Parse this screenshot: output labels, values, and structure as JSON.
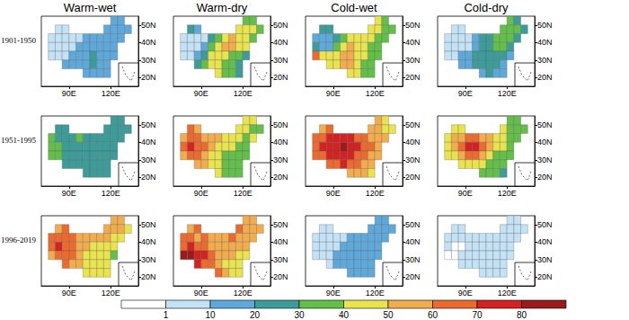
{
  "chart_data": {
    "type": "gridded_map_panels",
    "columns": [
      "Warm-wet",
      "Warm-dry",
      "Cold-wet",
      "Cold-dry"
    ],
    "rows": [
      "1901-1950",
      "1951-1995",
      "1996-2019"
    ],
    "xlim": [
      70,
      140
    ],
    "xticks": [
      {
        "value": 90,
        "label": "90E"
      },
      {
        "value": 120,
        "label": "120E"
      }
    ],
    "ylim": [
      15,
      55
    ],
    "yticks": [
      {
        "value": 20,
        "label": "20N"
      },
      {
        "value": 30,
        "label": "30N"
      },
      {
        "value": 40,
        "label": "40N"
      },
      {
        "value": 50,
        "label": "50N"
      }
    ],
    "grid": false,
    "cell_size": 5,
    "cell_lons": [
      122.5,
      127.5,
      82.5,
      87.5,
      117.5,
      122.5,
      127.5,
      132.5,
      77.5,
      82.5,
      87.5,
      92.5,
      97.5,
      102.5,
      107.5,
      112.5,
      117.5,
      122.5,
      127.5,
      77.5,
      82.5,
      87.5,
      92.5,
      97.5,
      102.5,
      107.5,
      112.5,
      117.5,
      122.5,
      77.5,
      82.5,
      87.5,
      92.5,
      97.5,
      102.5,
      107.5,
      112.5,
      117.5,
      122.5,
      87.5,
      92.5,
      97.5,
      102.5,
      107.5,
      112.5,
      117.5,
      102.5,
      107.5,
      112.5,
      117.5
    ],
    "cell_lats": [
      52.5,
      52.5,
      47.5,
      47.5,
      47.5,
      47.5,
      47.5,
      47.5,
      42.5,
      42.5,
      42.5,
      42.5,
      42.5,
      42.5,
      42.5,
      42.5,
      42.5,
      42.5,
      42.5,
      37.5,
      37.5,
      37.5,
      37.5,
      37.5,
      37.5,
      37.5,
      37.5,
      37.5,
      37.5,
      32.5,
      32.5,
      32.5,
      32.5,
      32.5,
      32.5,
      32.5,
      32.5,
      32.5,
      32.5,
      27.5,
      27.5,
      27.5,
      27.5,
      27.5,
      27.5,
      27.5,
      22.5,
      22.5,
      22.5,
      22.5
    ],
    "values": [
      [
        [
          12,
          10,
          5,
          8,
          10,
          12,
          15,
          12,
          5,
          5,
          3,
          5,
          8,
          10,
          12,
          12,
          15,
          15,
          12,
          3,
          2,
          3,
          5,
          10,
          15,
          15,
          15,
          15,
          12,
          2,
          3,
          8,
          12,
          15,
          18,
          20,
          18,
          15,
          15,
          10,
          12,
          15,
          18,
          20,
          18,
          15,
          15,
          18,
          15,
          12
        ],
        [
          35,
          30,
          20,
          15,
          40,
          45,
          40,
          35,
          5,
          5,
          3,
          8,
          20,
          35,
          45,
          50,
          45,
          40,
          35,
          3,
          2,
          5,
          10,
          30,
          45,
          55,
          50,
          45,
          40,
          5,
          5,
          15,
          25,
          40,
          45,
          40,
          35,
          30,
          25,
          20,
          30,
          40,
          45,
          35,
          30,
          25,
          40,
          35,
          30,
          25
        ],
        [
          40,
          35,
          20,
          25,
          45,
          40,
          35,
          30,
          15,
          10,
          15,
          20,
          35,
          40,
          45,
          45,
          40,
          35,
          35,
          20,
          10,
          15,
          30,
          45,
          50,
          45,
          40,
          35,
          30,
          65,
          45,
          40,
          45,
          50,
          55,
          45,
          40,
          35,
          30,
          40,
          45,
          50,
          50,
          40,
          35,
          35,
          45,
          40,
          35,
          30
        ],
        [
          30,
          25,
          5,
          8,
          30,
          35,
          30,
          25,
          3,
          3,
          2,
          5,
          10,
          20,
          25,
          30,
          35,
          30,
          25,
          2,
          2,
          3,
          8,
          15,
          20,
          25,
          30,
          30,
          25,
          5,
          5,
          10,
          15,
          20,
          20,
          20,
          20,
          20,
          15,
          10,
          15,
          20,
          20,
          20,
          20,
          15,
          15,
          20,
          15,
          12
        ]
      ],
      [
        [
          25,
          20,
          25,
          25,
          20,
          25,
          25,
          20,
          30,
          25,
          20,
          25,
          30,
          25,
          20,
          20,
          20,
          25,
          25,
          35,
          30,
          25,
          25,
          25,
          25,
          20,
          20,
          20,
          20,
          30,
          30,
          25,
          25,
          25,
          20,
          20,
          20,
          20,
          20,
          25,
          20,
          20,
          25,
          25,
          25,
          25,
          25,
          25,
          25,
          25
        ],
        [
          40,
          40,
          60,
          55,
          45,
          40,
          35,
          35,
          55,
          65,
          60,
          55,
          50,
          50,
          45,
          45,
          40,
          35,
          40,
          60,
          70,
          65,
          60,
          55,
          45,
          40,
          40,
          35,
          35,
          55,
          60,
          65,
          55,
          45,
          40,
          35,
          35,
          35,
          30,
          55,
          50,
          45,
          40,
          35,
          35,
          35,
          40,
          35,
          35,
          30
        ],
        [
          50,
          45,
          55,
          60,
          55,
          50,
          45,
          45,
          60,
          65,
          70,
          70,
          75,
          70,
          65,
          60,
          55,
          50,
          50,
          65,
          70,
          75,
          75,
          80,
          75,
          70,
          65,
          60,
          55,
          60,
          65,
          70,
          70,
          75,
          70,
          65,
          60,
          55,
          50,
          60,
          65,
          70,
          65,
          60,
          55,
          50,
          55,
          55,
          50,
          45
        ],
        [
          35,
          35,
          40,
          45,
          40,
          35,
          30,
          30,
          40,
          50,
          55,
          60,
          60,
          55,
          50,
          45,
          40,
          35,
          35,
          45,
          55,
          60,
          70,
          75,
          65,
          55,
          45,
          40,
          35,
          40,
          45,
          55,
          60,
          65,
          50,
          40,
          35,
          30,
          30,
          40,
          45,
          45,
          40,
          35,
          30,
          30,
          35,
          30,
          30,
          25
        ]
      ],
      [
        [
          55,
          50,
          55,
          60,
          55,
          55,
          50,
          45,
          60,
          65,
          60,
          60,
          55,
          55,
          50,
          55,
          50,
          45,
          45,
          65,
          70,
          60,
          60,
          55,
          50,
          45,
          45,
          45,
          40,
          55,
          60,
          65,
          60,
          55,
          45,
          40,
          40,
          40,
          35,
          60,
          55,
          50,
          45,
          40,
          40,
          40,
          45,
          45,
          40,
          40
        ],
        [
          55,
          50,
          55,
          60,
          60,
          55,
          50,
          50,
          65,
          60,
          55,
          60,
          55,
          55,
          55,
          60,
          55,
          55,
          50,
          65,
          70,
          65,
          60,
          55,
          55,
          55,
          55,
          50,
          50,
          80,
          85,
          75,
          70,
          60,
          55,
          50,
          50,
          45,
          45,
          70,
          65,
          60,
          55,
          45,
          45,
          45,
          60,
          50,
          45,
          45
        ],
        [
          10,
          10,
          8,
          8,
          10,
          10,
          10,
          12,
          8,
          8,
          5,
          8,
          8,
          10,
          10,
          10,
          12,
          12,
          12,
          8,
          5,
          5,
          8,
          10,
          12,
          12,
          12,
          12,
          12,
          5,
          5,
          8,
          10,
          12,
          15,
          15,
          15,
          15,
          15,
          8,
          10,
          12,
          15,
          15,
          15,
          15,
          12,
          15,
          15,
          15
        ],
        [
          5,
          5,
          3,
          3,
          5,
          5,
          5,
          5,
          2,
          2,
          1,
          2,
          3,
          3,
          3,
          3,
          5,
          5,
          5,
          2,
          0.5,
          0.5,
          2,
          3,
          3,
          3,
          3,
          5,
          5,
          0.5,
          0.5,
          2,
          3,
          3,
          5,
          5,
          5,
          5,
          5,
          2,
          3,
          5,
          5,
          5,
          5,
          5,
          5,
          5,
          5,
          5
        ]
      ]
    ],
    "color_bar": {
      "bounds": [
        1,
        10,
        20,
        30,
        40,
        50,
        60,
        70,
        80
      ],
      "colors": [
        "#ffffff",
        "#c4e2f6",
        "#5ea9dc",
        "#3c9c9a",
        "#62bf48",
        "#e9e44c",
        "#f3ac4c",
        "#ec6a2e",
        "#d42222",
        "#9b1b1b"
      ]
    }
  }
}
